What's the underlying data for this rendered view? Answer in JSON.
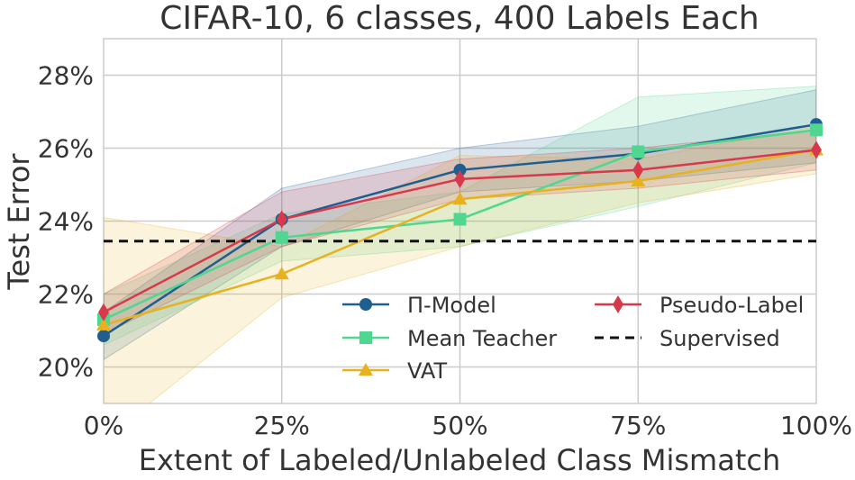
{
  "chart_data": {
    "type": "line",
    "title": "CIFAR-10, 6 classes, 400 Labels Each",
    "xlabel": "Extent of Labeled/Unlabeled Class Mismatch",
    "ylabel": "Test Error",
    "x": [
      0,
      25,
      50,
      75,
      100
    ],
    "x_tick_labels": [
      "0%",
      "25%",
      "50%",
      "75%",
      "100%"
    ],
    "y_ticks": [
      20,
      22,
      24,
      26,
      28
    ],
    "y_tick_labels": [
      "20%",
      "22%",
      "24%",
      "26%",
      "28%"
    ],
    "xlim": [
      0,
      100
    ],
    "ylim": [
      19,
      29
    ],
    "grid": true,
    "legend_position": "lower-right",
    "series": [
      {
        "name": "Π-Model",
        "color": "#1f5f8f",
        "marker": "circle",
        "values": [
          20.85,
          24.05,
          25.4,
          25.85,
          26.65
        ],
        "lower": [
          20.2,
          23.3,
          24.8,
          25.1,
          25.6
        ],
        "upper": [
          21.5,
          24.9,
          26.0,
          26.6,
          27.6
        ]
      },
      {
        "name": "Mean Teacher",
        "color": "#4fd68f",
        "marker": "square",
        "values": [
          21.3,
          23.55,
          24.05,
          25.9,
          26.5
        ],
        "lower": [
          20.6,
          22.9,
          23.3,
          24.4,
          25.6
        ],
        "upper": [
          22.0,
          24.2,
          24.8,
          27.4,
          27.7
        ]
      },
      {
        "name": "VAT",
        "color": "#e6b21f",
        "marker": "triangle",
        "values": [
          21.15,
          22.55,
          24.6,
          25.1,
          25.95
        ],
        "lower": [
          18.0,
          21.9,
          23.3,
          24.5,
          25.3
        ],
        "upper": [
          24.1,
          23.3,
          25.8,
          25.7,
          26.6
        ]
      },
      {
        "name": "Pseudo-Label",
        "color": "#d8394a",
        "marker": "diamond",
        "values": [
          21.5,
          24.05,
          25.15,
          25.4,
          25.95
        ],
        "lower": [
          20.9,
          23.3,
          24.6,
          24.9,
          25.4
        ],
        "upper": [
          22.0,
          24.8,
          25.7,
          26.0,
          26.5
        ]
      },
      {
        "name": "Supervised",
        "color": "#111111",
        "marker": "none",
        "dashed": true,
        "values": [
          23.45,
          23.45,
          23.45,
          23.45,
          23.45
        ]
      }
    ]
  }
}
